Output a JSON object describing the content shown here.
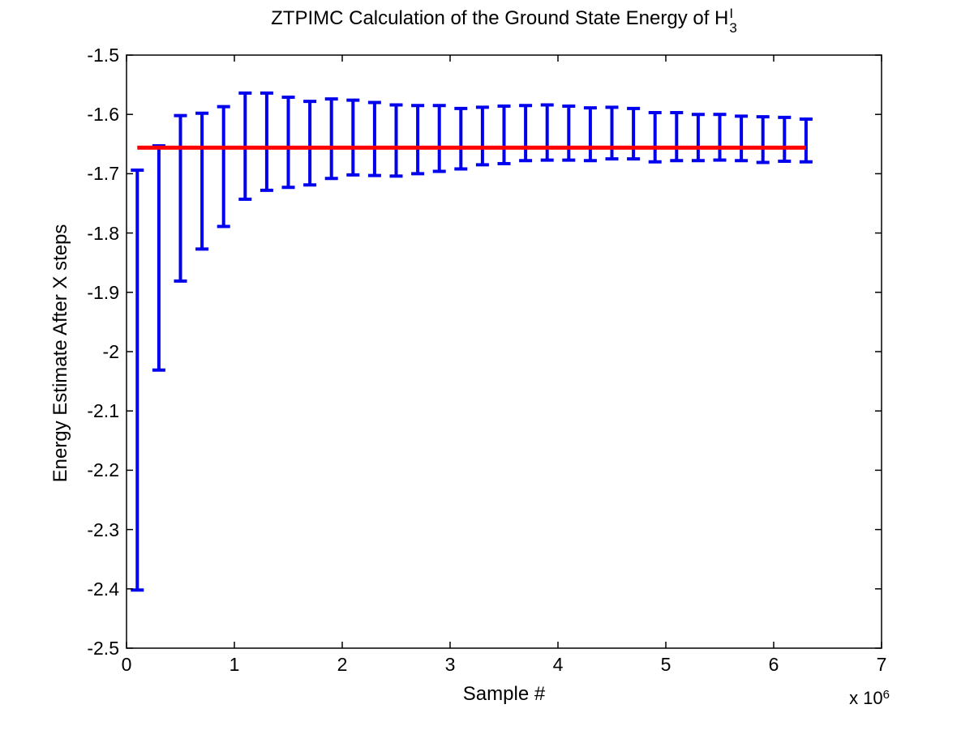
{
  "title": {
    "text": "ZTPIMC Calculation of the Ground State Energy of H",
    "subscript": "3",
    "superscript": "I"
  },
  "axes": {
    "xlabel": "Sample #",
    "ylabel": "Energy Estimate After X steps",
    "x_multiplier_base": "x 10",
    "x_multiplier_exponent": "6",
    "x_ticks": [
      "0",
      "1",
      "2",
      "3",
      "4",
      "5",
      "6",
      "7"
    ],
    "y_ticks": [
      "-1.5",
      "-1.6",
      "-1.7",
      "-1.8",
      "-1.9",
      "-2",
      "-2.1",
      "-2.2",
      "-2.3",
      "-2.4",
      "-2.5"
    ]
  },
  "colors": {
    "error_bar": "#0000EE",
    "reference_line": "#FF0000",
    "axis": "#000000",
    "background": "#FFFFFF"
  },
  "chart_data": {
    "type": "errorbar",
    "title": "ZTPIMC Calculation of the Ground State Energy of H_3^I",
    "xlabel": "Sample #",
    "ylabel": "Energy Estimate After X steps",
    "x_units_note": "x values in units of 10^6 samples",
    "xlim_millions": [
      0,
      7
    ],
    "ylim": [
      -2.5,
      -1.5
    ],
    "grid": false,
    "legend": "none",
    "reference_line": {
      "y": -1.656,
      "x_start_millions": 0.1,
      "x_end_millions": 6.3
    },
    "series": [
      {
        "name": "energy-estimate-error-bars",
        "x_millions": [
          0.1,
          0.3,
          0.5,
          0.7,
          0.9,
          1.1,
          1.3,
          1.5,
          1.7,
          1.9,
          2.1,
          2.3,
          2.5,
          2.7,
          2.9,
          3.1,
          3.3,
          3.5,
          3.7,
          3.9,
          4.1,
          4.3,
          4.5,
          4.7,
          4.9,
          5.1,
          5.3,
          5.5,
          5.7,
          5.9,
          6.1,
          6.3
        ],
        "y_high": [
          -1.694,
          -1.653,
          -1.602,
          -1.598,
          -1.587,
          -1.564,
          -1.564,
          -1.571,
          -1.578,
          -1.574,
          -1.576,
          -1.58,
          -1.584,
          -1.585,
          -1.585,
          -1.59,
          -1.588,
          -1.586,
          -1.585,
          -1.584,
          -1.586,
          -1.589,
          -1.588,
          -1.59,
          -1.597,
          -1.597,
          -1.6,
          -1.6,
          -1.603,
          -1.604,
          -1.605,
          -1.608
        ],
        "y_low": [
          -2.402,
          -2.031,
          -1.881,
          -1.827,
          -1.789,
          -1.743,
          -1.728,
          -1.723,
          -1.719,
          -1.708,
          -1.702,
          -1.703,
          -1.704,
          -1.7,
          -1.696,
          -1.692,
          -1.685,
          -1.683,
          -1.678,
          -1.677,
          -1.677,
          -1.678,
          -1.675,
          -1.675,
          -1.68,
          -1.678,
          -1.678,
          -1.677,
          -1.678,
          -1.681,
          -1.679,
          -1.68
        ]
      }
    ]
  }
}
